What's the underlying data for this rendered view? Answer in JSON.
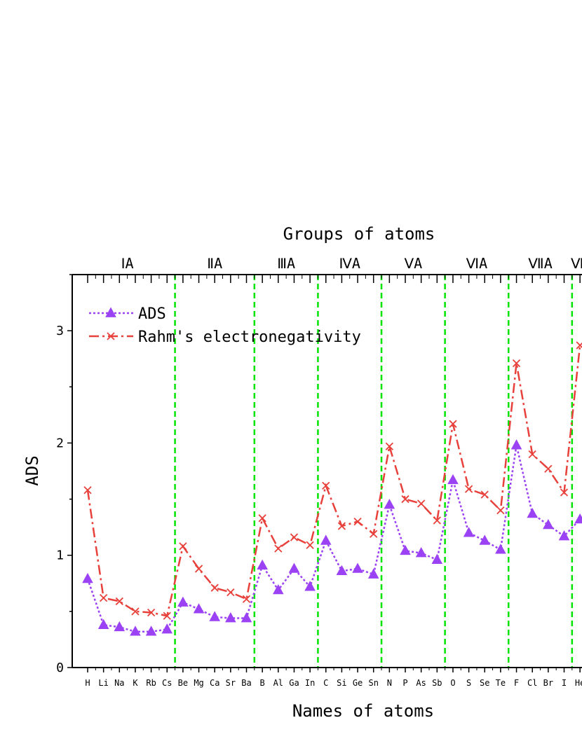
{
  "chart_data": {
    "type": "line",
    "title": "Groups of atoms",
    "xlabel": "Names of atoms",
    "ylabel": "ADS",
    "ylim": [
      0,
      3.5
    ],
    "yticks": [
      0,
      1,
      2,
      3
    ],
    "categories": [
      "H",
      "Li",
      "Na",
      "K",
      "Rb",
      "Cs",
      "Be",
      "Mg",
      "Ca",
      "Sr",
      "Ba",
      "B",
      "Al",
      "Ga",
      "In",
      "C",
      "Si",
      "Ge",
      "Sn",
      "N",
      "P",
      "As",
      "Sb",
      "O",
      "S",
      "Se",
      "Te",
      "F",
      "Cl",
      "Br",
      "I",
      "He"
    ],
    "groups": [
      {
        "label": "ⅠA",
        "start": 0,
        "end": 5
      },
      {
        "label": "ⅡA",
        "start": 6,
        "end": 10
      },
      {
        "label": "ⅢA",
        "start": 11,
        "end": 14
      },
      {
        "label": "ⅣA",
        "start": 15,
        "end": 18
      },
      {
        "label": "ⅤA",
        "start": 19,
        "end": 22
      },
      {
        "label": "ⅥA",
        "start": 23,
        "end": 26
      },
      {
        "label": "ⅦA",
        "start": 27,
        "end": 30
      },
      {
        "label": "Ⅷ",
        "start": 31,
        "end": 31
      }
    ],
    "separators_after_index": [
      5,
      10,
      14,
      18,
      22,
      26,
      30
    ],
    "legend_position": "top-left",
    "series": [
      {
        "name": "ADS",
        "color": "#9B42F5",
        "marker": "triangle",
        "line": "dotted",
        "values": [
          0.79,
          0.38,
          0.36,
          0.32,
          0.32,
          0.34,
          0.58,
          0.52,
          0.45,
          0.44,
          0.44,
          0.91,
          0.69,
          0.88,
          0.72,
          1.13,
          0.86,
          0.88,
          0.83,
          1.45,
          1.04,
          1.02,
          0.96,
          1.67,
          1.2,
          1.13,
          1.05,
          1.98,
          1.37,
          1.27,
          1.17,
          1.32
        ]
      },
      {
        "name": "Rahm's electronegativity",
        "color": "#E8413C",
        "marker": "x",
        "line": "dashdot",
        "values": [
          1.58,
          0.62,
          0.59,
          0.5,
          0.49,
          0.46,
          1.08,
          0.88,
          0.71,
          0.67,
          0.61,
          1.33,
          1.06,
          1.16,
          1.09,
          1.62,
          1.26,
          1.3,
          1.19,
          1.97,
          1.5,
          1.46,
          1.31,
          2.17,
          1.59,
          1.54,
          1.4,
          2.71,
          1.9,
          1.77,
          1.56,
          2.87
        ]
      }
    ]
  }
}
